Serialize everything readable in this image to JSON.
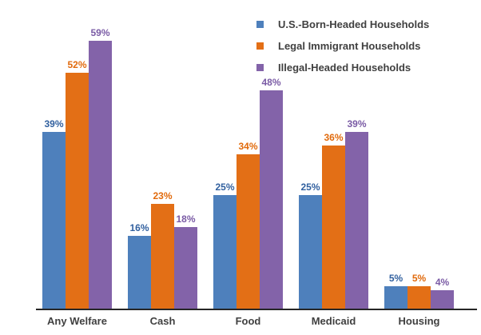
{
  "chart_data": {
    "type": "bar",
    "title": "",
    "categories": [
      "Any Welfare",
      "Cash",
      "Food",
      "Medicaid",
      "Housing"
    ],
    "series": [
      {
        "name": "U.S.-Born-Headed Households",
        "color": "#4E80BC",
        "label_color": "#31609F",
        "values": [
          39,
          16,
          25,
          25,
          5
        ]
      },
      {
        "name": "Legal Immigrant Households",
        "color": "#E36F16",
        "label_color": "#E16A0C",
        "values": [
          52,
          23,
          34,
          36,
          5
        ]
      },
      {
        "name": "Illegal-Headed Households",
        "color": "#8363A9",
        "label_color": "#7A5BA5",
        "values": [
          59,
          18,
          48,
          39,
          4
        ]
      }
    ],
    "value_suffix": "%",
    "ylim": [
      0,
      62
    ],
    "grid": false,
    "legend_position": "top-right",
    "axis_color": "#262626",
    "category_label_color": "#404040",
    "legend_text_color": "#404040",
    "background": "#FFFFFF"
  }
}
